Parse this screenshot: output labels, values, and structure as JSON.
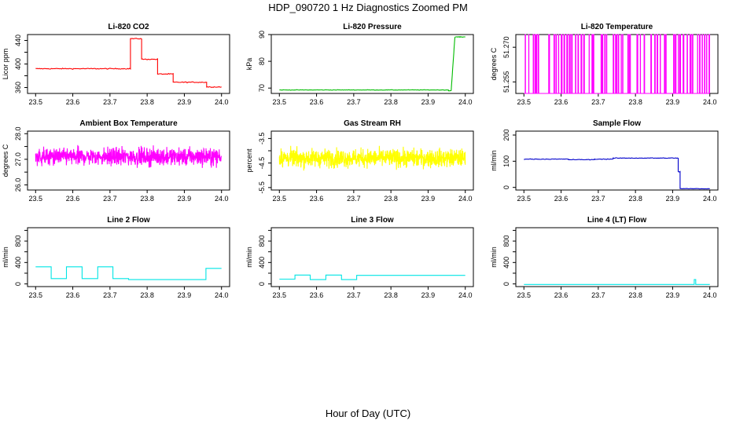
{
  "figure": {
    "title": "HDP_090720  1 Hz Diagnostics Zoomed PM",
    "xlabel": "Hour of Day (UTC)"
  },
  "chart_data": [
    {
      "type": "line",
      "title": "Li-820 CO2",
      "ylabel": "Licor ppm",
      "color": "#ff0000",
      "xlim": [
        23.5,
        24.0
      ],
      "ylim": [
        350,
        450
      ],
      "xticks": [
        "23.5",
        "23.6",
        "23.7",
        "23.8",
        "23.9",
        "24.0"
      ],
      "yticks": [
        360,
        380,
        400,
        420,
        440
      ],
      "ytick_labels": [
        "360",
        "",
        "400",
        "",
        "440"
      ],
      "noise": 0.8,
      "segments": [
        [
          23.5,
          23.755,
          392
        ],
        [
          23.755,
          23.785,
          443
        ],
        [
          23.785,
          23.828,
          408
        ],
        [
          23.828,
          23.87,
          383
        ],
        [
          23.87,
          23.96,
          369
        ],
        [
          23.96,
          24.0,
          361
        ]
      ]
    },
    {
      "type": "line",
      "title": "Li-820 Pressure",
      "ylabel": "kPa",
      "color": "#00bb00",
      "xlim": [
        23.5,
        24.0
      ],
      "ylim": [
        68,
        90
      ],
      "xticks": [
        "23.5",
        "23.6",
        "23.7",
        "23.8",
        "23.9",
        "24.0"
      ],
      "yticks": [
        70,
        80,
        90
      ],
      "ytick_labels": [
        "70",
        "80",
        "90"
      ],
      "noise": 0.1,
      "segments": [
        [
          23.5,
          23.955,
          69.3
        ],
        [
          23.955,
          23.962,
          69.0
        ]
      ],
      "ramp": [
        23.962,
        23.972,
        69.0,
        89.0
      ],
      "tail": [
        23.972,
        24.0,
        89.1
      ]
    },
    {
      "type": "spikes",
      "title": "Li-820 Temperature",
      "ylabel": "degrees C",
      "color": "#ff00ff",
      "xlim": [
        23.5,
        24.0
      ],
      "ylim": [
        51.25,
        51.2755
      ],
      "xticks": [
        "23.5",
        "23.6",
        "23.7",
        "23.8",
        "23.9",
        "24.0"
      ],
      "yticks": [
        51.255,
        51.27
      ],
      "ytick_labels": [
        "51.255",
        "51.270"
      ],
      "base": 51.25,
      "top": 51.2755
    },
    {
      "type": "noise",
      "title": "Ambient Box Temperature",
      "ylabel": "degrees C",
      "color": "#ff00ff",
      "xlim": [
        23.5,
        24.0
      ],
      "ylim": [
        25.8,
        28.1
      ],
      "xticks": [
        "23.5",
        "23.6",
        "23.7",
        "23.8",
        "23.9",
        "24.0"
      ],
      "yticks": [
        26.0,
        26.5,
        27.0,
        27.5,
        28.0
      ],
      "ytick_labels": [
        "26.0",
        "",
        "27.0",
        "",
        "28.0"
      ],
      "mean": 27.1,
      "spread": 0.35
    },
    {
      "type": "noise",
      "title": "Gas Stream RH",
      "ylabel": "percent",
      "color": "#ffff00",
      "xlim": [
        23.5,
        24.0
      ],
      "ylim": [
        -5.6,
        -3.2
      ],
      "xticks": [
        "23.5",
        "23.6",
        "23.7",
        "23.8",
        "23.9",
        "24.0"
      ],
      "yticks": [
        -5.5,
        -5.0,
        -4.5,
        -4.0,
        -3.5
      ],
      "ytick_labels": [
        "-5.5",
        "",
        "-4.5",
        "",
        "-3.5"
      ],
      "mean": -4.3,
      "spread": 0.38
    },
    {
      "type": "line",
      "title": "Sample Flow",
      "ylabel": "ml/min",
      "color": "#0000cc",
      "xlim": [
        23.5,
        24.0
      ],
      "ylim": [
        -10,
        215
      ],
      "xticks": [
        "23.5",
        "23.6",
        "23.7",
        "23.8",
        "23.9",
        "24.0"
      ],
      "yticks": [
        0,
        100,
        200
      ],
      "ytick_labels": [
        "0",
        "100",
        "200"
      ],
      "noise": 1.2,
      "segments": [
        [
          23.5,
          23.62,
          108
        ],
        [
          23.62,
          23.69,
          106
        ],
        [
          23.69,
          23.74,
          108
        ],
        [
          23.74,
          23.915,
          112
        ],
        [
          23.915,
          23.92,
          60
        ],
        [
          23.92,
          24.0,
          -5
        ]
      ]
    },
    {
      "type": "line",
      "title": "Line 2 Flow",
      "ylabel": "ml/min",
      "color": "#00e5e5",
      "xlim": [
        23.5,
        24.0
      ],
      "ylim": [
        -50,
        1050
      ],
      "xticks": [
        "23.5",
        "23.6",
        "23.7",
        "23.8",
        "23.9",
        "24.0"
      ],
      "yticks": [
        0,
        200,
        400,
        600,
        800,
        1000
      ],
      "ytick_labels": [
        "0",
        "",
        "400",
        "",
        "800",
        ""
      ],
      "noise": 0,
      "segments": [
        [
          23.5,
          23.542,
          320
        ],
        [
          23.542,
          23.583,
          100
        ],
        [
          23.583,
          23.625,
          320
        ],
        [
          23.625,
          23.667,
          100
        ],
        [
          23.667,
          23.708,
          320
        ],
        [
          23.708,
          23.75,
          100
        ],
        [
          23.75,
          23.958,
          80
        ],
        [
          23.958,
          24.0,
          290
        ]
      ]
    },
    {
      "type": "line",
      "title": "Line 3 Flow",
      "ylabel": "ml/min",
      "color": "#00e5e5",
      "xlim": [
        23.5,
        24.0
      ],
      "ylim": [
        -50,
        1050
      ],
      "xticks": [
        "23.5",
        "23.6",
        "23.7",
        "23.8",
        "23.9",
        "24.0"
      ],
      "yticks": [
        0,
        200,
        400,
        600,
        800,
        1000
      ],
      "ytick_labels": [
        "0",
        "",
        "400",
        "",
        "800",
        ""
      ],
      "noise": 0,
      "segments": [
        [
          23.5,
          23.542,
          90
        ],
        [
          23.542,
          23.583,
          165
        ],
        [
          23.583,
          23.625,
          80
        ],
        [
          23.625,
          23.667,
          165
        ],
        [
          23.667,
          23.708,
          80
        ],
        [
          23.708,
          24.0,
          160
        ]
      ]
    },
    {
      "type": "line",
      "title": "Line 4 (LT) Flow",
      "ylabel": "ml/min",
      "color": "#00e5e5",
      "xlim": [
        23.5,
        24.0
      ],
      "ylim": [
        -50,
        1050
      ],
      "xticks": [
        "23.5",
        "23.6",
        "23.7",
        "23.8",
        "23.9",
        "24.0"
      ],
      "yticks": [
        0,
        200,
        400,
        600,
        800,
        1000
      ],
      "ytick_labels": [
        "0",
        "",
        "400",
        "",
        "800",
        ""
      ],
      "noise": 0,
      "segments": [
        [
          23.5,
          23.958,
          -10
        ],
        [
          23.958,
          23.962,
          80
        ],
        [
          23.962,
          24.0,
          -10
        ]
      ]
    }
  ]
}
